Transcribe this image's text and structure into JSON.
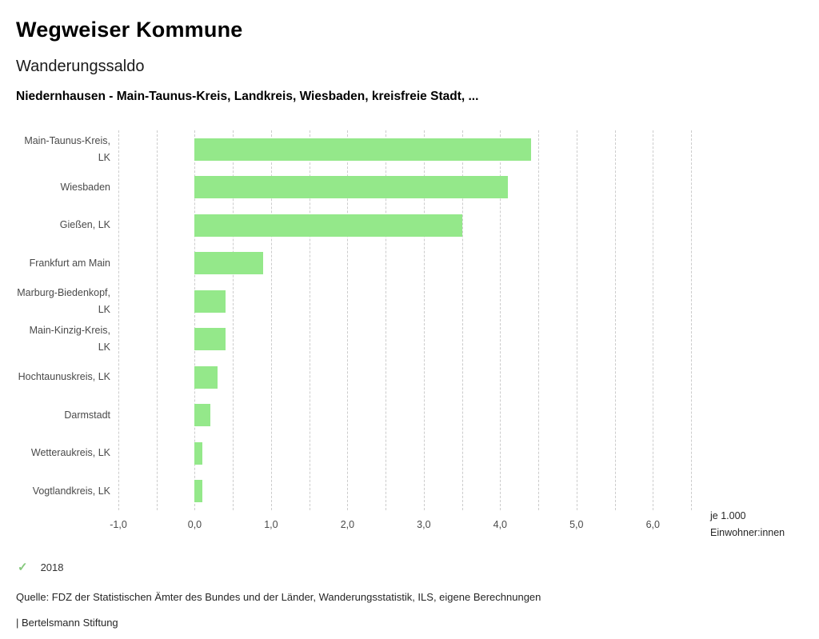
{
  "header": {
    "title": "Wegweiser Kommune",
    "subtitle": "Wanderungssaldo",
    "comparison": "Niedernhausen - Main-Taunus-Kreis, Landkreis, Wiesbaden, kreisfreie Stadt, ..."
  },
  "chart_data": {
    "type": "bar",
    "orientation": "horizontal",
    "title": "Wanderungssaldo",
    "xlabel": "je 1.000 Einwohner:innen",
    "ylabel": "",
    "grid": true,
    "legend_position": "none",
    "categories": [
      "Main-Taunus-Kreis, LK",
      "Wiesbaden",
      "Gießen, LK",
      "Frankfurt am Main",
      "Marburg-Biedenkopf, LK",
      "Main-Kinzig-Kreis, LK",
      "Hochtaunuskreis, LK",
      "Darmstadt",
      "Wetteraukreis, LK",
      "Vogtlandkreis, LK"
    ],
    "values": [
      4.4,
      4.1,
      3.5,
      0.9,
      0.4,
      0.4,
      0.3,
      0.2,
      0.1,
      0.1
    ],
    "xlim": [
      -1.0,
      6.5
    ],
    "grid_step": 0.5,
    "xticks": [
      {
        "value": -1,
        "label": "-1,0"
      },
      {
        "value": 0,
        "label": "0,0"
      },
      {
        "value": 1,
        "label": "1,0"
      },
      {
        "value": 2,
        "label": "2,0"
      },
      {
        "value": 3,
        "label": "3,0"
      },
      {
        "value": 4,
        "label": "4,0"
      },
      {
        "value": 5,
        "label": "5,0"
      },
      {
        "value": 6,
        "label": "6,0"
      }
    ],
    "unit_label": [
      "je 1.000",
      "Einwohner:innen"
    ],
    "bar_color": "#94e88a",
    "gridline_color": "#cccccc"
  },
  "legend": {
    "check_glyph": "✓",
    "check_color": "#86c97d",
    "year": "2018"
  },
  "footer": {
    "source": "Quelle: FDZ der Statistischen Ämter des Bundes und der Länder, Wanderungsstatistik, ILS, eigene Berechnungen",
    "branding": "| Bertelsmann Stiftung"
  }
}
